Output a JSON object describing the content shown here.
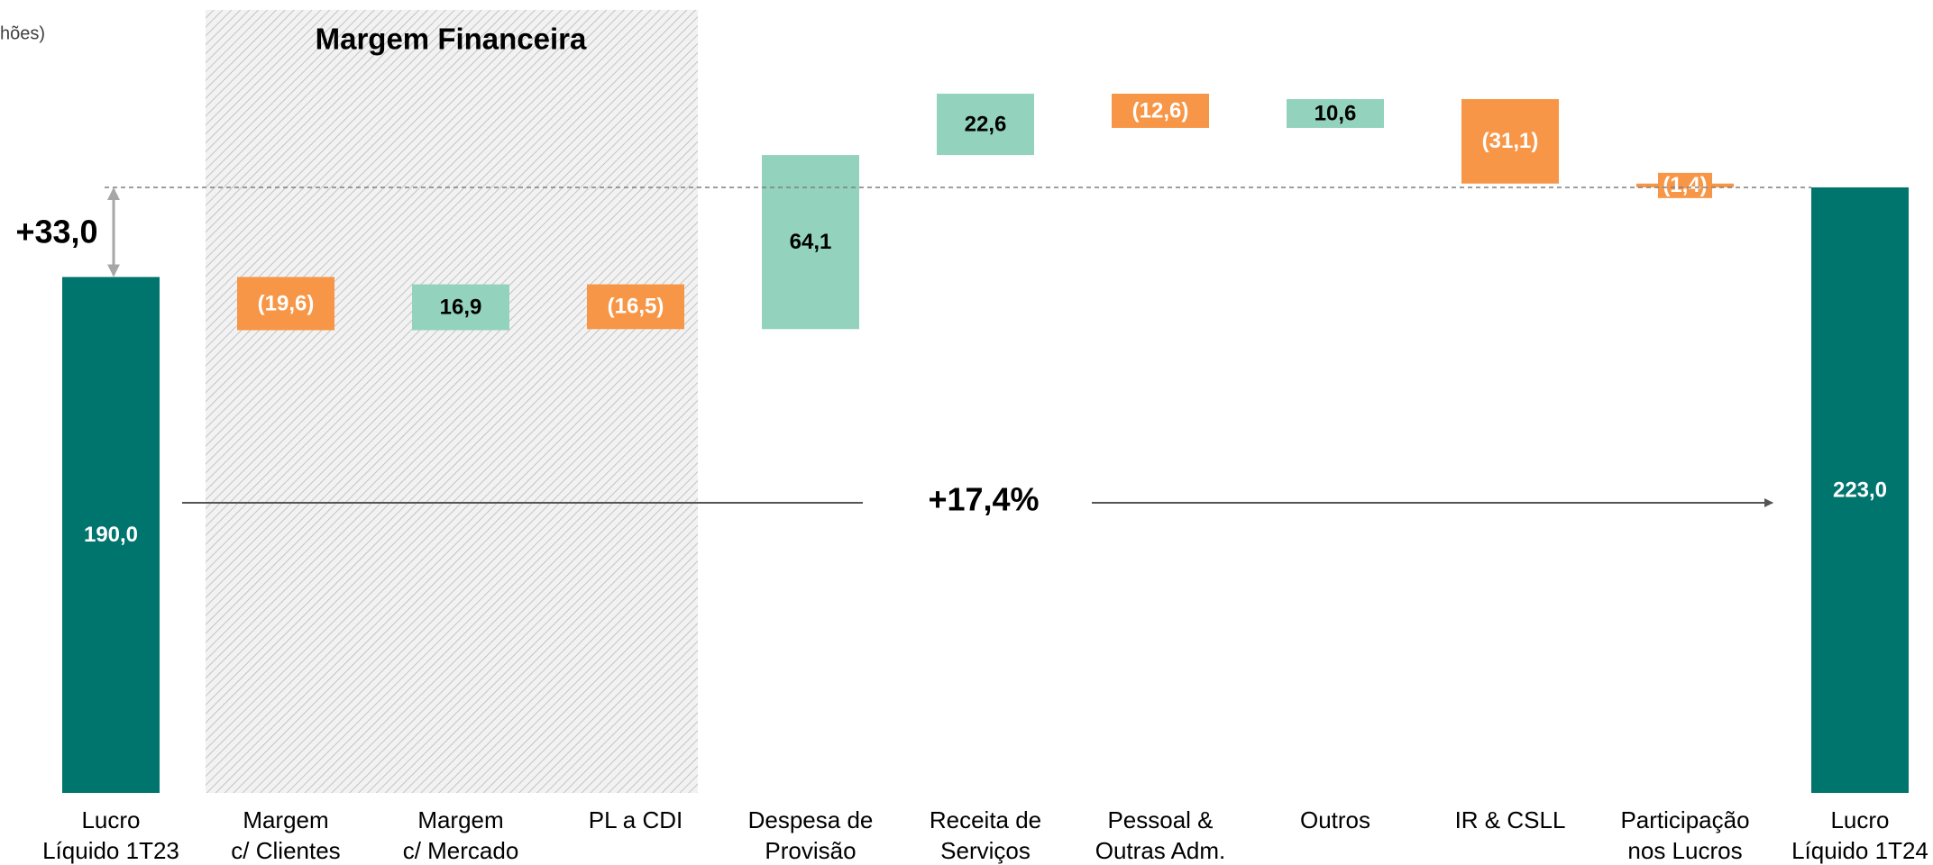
{
  "chart_data": {
    "type": "waterfall",
    "subtitle": "hões)",
    "categories": [
      "Lucro\nLíquido 1T23",
      "Margem\nc/ Clientes",
      "Margem\nc/ Mercado",
      "PL a CDI",
      "Despesa de\nProvisão",
      "Receita de\nServiços",
      "Pessoal &\nOutras Adm.",
      "Outros",
      "IR & CSLL",
      "Participação\nnos Lucros",
      "Lucro\nLíquido 1T24"
    ],
    "values": [
      190.0,
      -19.6,
      16.9,
      -16.5,
      64.1,
      22.6,
      -12.6,
      10.6,
      -31.1,
      -1.4,
      223.0
    ],
    "value_labels": [
      "190,0",
      "(19,6)",
      "16,9",
      "(16,5)",
      "64,1",
      "22,6",
      "(12,6)",
      "10,6",
      "(31,1)",
      "(1,4)",
      "223,0"
    ],
    "measure": [
      "total",
      "relative",
      "relative",
      "relative",
      "relative",
      "relative",
      "relative",
      "relative",
      "relative",
      "relative",
      "total"
    ],
    "colors": {
      "total": "#00756e",
      "increase": "#93d3bd",
      "decrease": "#f79646"
    },
    "ylim": [
      0,
      292
    ],
    "annotations": {
      "group_label": "Margem Financeira",
      "difference": "+33,0",
      "growth": "+17,4%"
    }
  }
}
